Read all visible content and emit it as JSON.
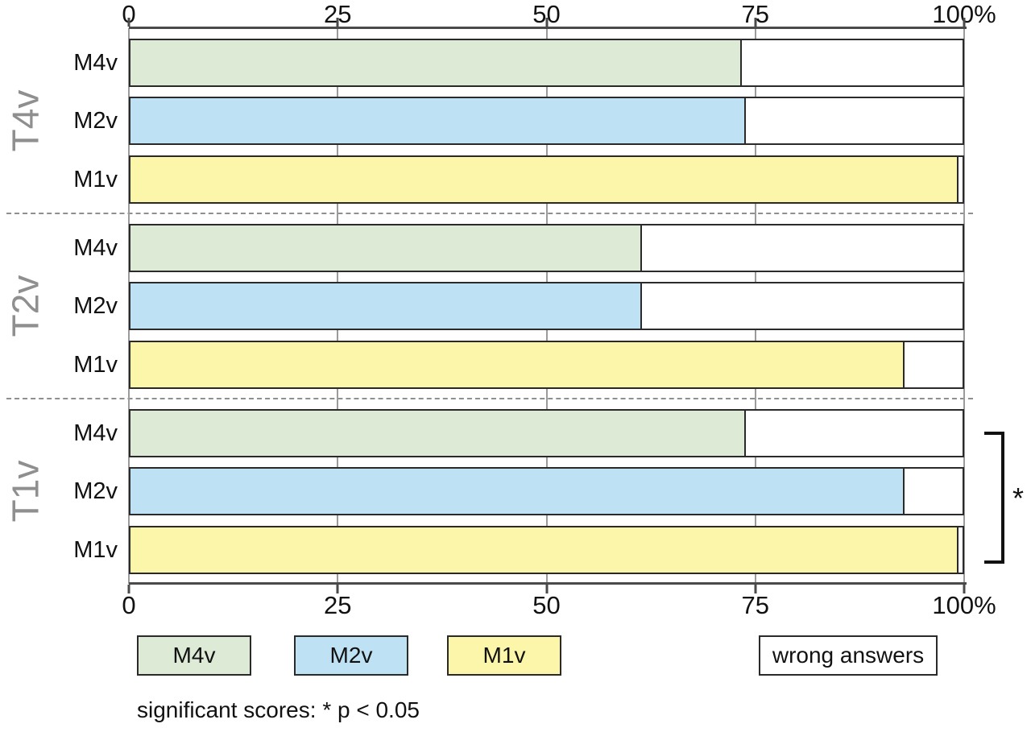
{
  "chart_data": {
    "type": "bar",
    "orientation": "horizontal",
    "unit": "%",
    "title": "",
    "xlim": [
      0,
      100
    ],
    "x_ticks": [
      "0",
      "25",
      "50",
      "75",
      "100%"
    ],
    "x_tick_values": [
      0,
      25,
      50,
      75,
      100
    ],
    "grid": true,
    "groups": [
      {
        "label": "T4v",
        "bars": [
          {
            "label": "M4v",
            "series": "M4v",
            "value": 73.5
          },
          {
            "label": "M2v",
            "series": "M2v",
            "value": 74
          },
          {
            "label": "M1v",
            "series": "M1v",
            "value": 99.5
          }
        ]
      },
      {
        "label": "T2v",
        "bars": [
          {
            "label": "M4v",
            "series": "M4v",
            "value": 61.5
          },
          {
            "label": "M2v",
            "series": "M2v",
            "value": 61.5
          },
          {
            "label": "M1v",
            "series": "M1v",
            "value": 93
          }
        ]
      },
      {
        "label": "T1v",
        "bars": [
          {
            "label": "M4v",
            "series": "M4v",
            "value": 74
          },
          {
            "label": "M2v",
            "series": "M2v",
            "value": 93
          },
          {
            "label": "M1v",
            "series": "M1v",
            "value": 99.5
          }
        ]
      }
    ],
    "series_colors": {
      "M4v": "#dcead6",
      "M2v": "#bfe1f4",
      "M1v": "#fcf6aa",
      "wrong_answers": "#ffffff"
    },
    "remainder_meaning": "wrong answers",
    "legend": [
      {
        "label": "M4v",
        "color": "#dcead6"
      },
      {
        "label": "M2v",
        "color": "#bfe1f4"
      },
      {
        "label": "M1v",
        "color": "#fcf6aa"
      },
      {
        "label": "wrong answers",
        "color": "#ffffff"
      }
    ],
    "legend_position": "bottom",
    "significance": {
      "bracket_group": "T1v",
      "marker": "*",
      "caption": "significant scores: * p < 0.05"
    }
  },
  "colors": {
    "bar_border": "#2a2a2a",
    "axis": "#4a4a4a",
    "gridline": "#9b9b9b",
    "group_label": "#8f8f8f",
    "separator": "#8f8f8f",
    "background": "#ffffff",
    "text": "#111111"
  }
}
